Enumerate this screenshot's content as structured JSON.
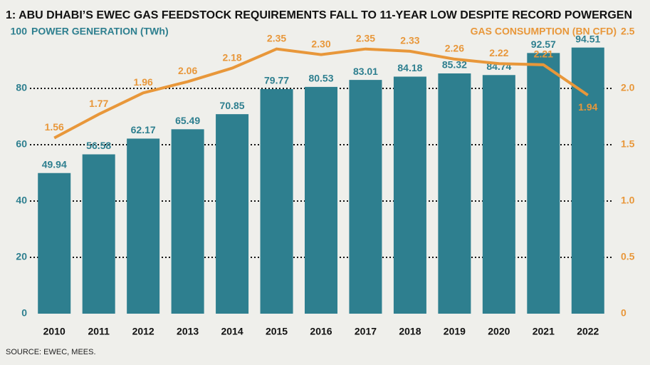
{
  "chart_data": {
    "type": "bar-line",
    "title": "1: ABU DHABI’S EWEC GAS FEEDSTOCK REQUIREMENTS FALL TO 11-YEAR LOW DESPITE RECORD POWERGEN",
    "y_label": "POWER GENERATION (TWh)",
    "y2_label": "GAS CONSUMPTION (BN CFD)",
    "source": "SOURCE: EWEC, MEES.",
    "categories": [
      "2010",
      "2011",
      "2012",
      "2013",
      "2014",
      "2015",
      "2016",
      "2017",
      "2018",
      "2019",
      "2020",
      "2021",
      "2022"
    ],
    "series": [
      {
        "name": "POWER GENERATION (TWh)",
        "type": "bar",
        "color": "#2e7f8f",
        "values": [
          49.94,
          56.58,
          62.17,
          65.49,
          70.85,
          79.77,
          80.53,
          83.01,
          84.18,
          85.32,
          84.74,
          92.57,
          94.51
        ]
      },
      {
        "name": "GAS CONSUMPTION (BN CFD)",
        "type": "line",
        "axis": "y2",
        "color": "#e8973a",
        "values": [
          1.56,
          1.77,
          1.96,
          2.06,
          2.18,
          2.35,
          2.3,
          2.35,
          2.33,
          2.26,
          2.22,
          2.21,
          1.94
        ],
        "value_labels": [
          "1.56",
          "1.77",
          "1.96",
          "2.06",
          "2.18",
          "2.35",
          "2.30",
          "2.35",
          "2.33",
          "2.26",
          "2.22",
          "2.21",
          "1.94"
        ]
      }
    ],
    "ylim": [
      0,
      100
    ],
    "yticks": [
      0,
      20,
      40,
      60,
      80,
      100
    ],
    "y2lim": [
      0,
      2.5
    ],
    "y2ticks": [
      0,
      0.5,
      {
        "value": 1,
        "label": "1.0"
      },
      1.5,
      {
        "value": 2,
        "label": "2.0"
      },
      2.5
    ],
    "grid": true
  }
}
